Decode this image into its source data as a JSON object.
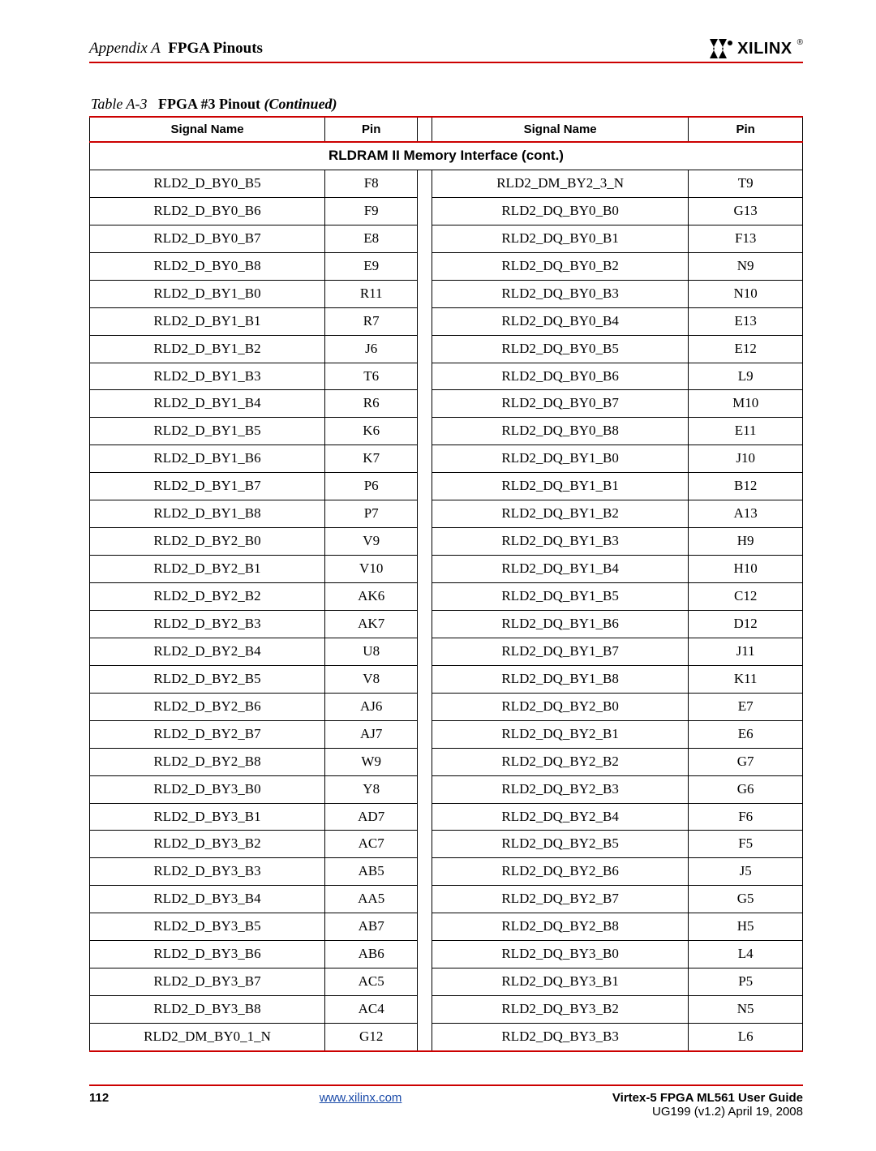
{
  "header": {
    "appendix_label": "Appendix A",
    "section_title": "FPGA Pinouts",
    "logo_text": "XILINX",
    "logo_reg": "®"
  },
  "caption": {
    "table_label": "Table  A-3",
    "title_bold": "FPGA #3 Pinout",
    "title_cont": "(Continued)"
  },
  "table": {
    "headers": {
      "signal_left": "Signal Name",
      "pin_left": "Pin",
      "signal_right": "Signal Name",
      "pin_right": "Pin"
    },
    "section_title": "RLDRAM II Memory Interface (cont.)",
    "rows": [
      {
        "l_sig": "RLD2_D_BY0_B5",
        "l_pin": "F8",
        "r_sig": "RLD2_DM_BY2_3_N",
        "r_pin": "T9"
      },
      {
        "l_sig": "RLD2_D_BY0_B6",
        "l_pin": "F9",
        "r_sig": "RLD2_DQ_BY0_B0",
        "r_pin": "G13"
      },
      {
        "l_sig": "RLD2_D_BY0_B7",
        "l_pin": "E8",
        "r_sig": "RLD2_DQ_BY0_B1",
        "r_pin": "F13"
      },
      {
        "l_sig": "RLD2_D_BY0_B8",
        "l_pin": "E9",
        "r_sig": "RLD2_DQ_BY0_B2",
        "r_pin": "N9"
      },
      {
        "l_sig": "RLD2_D_BY1_B0",
        "l_pin": "R11",
        "r_sig": "RLD2_DQ_BY0_B3",
        "r_pin": "N10"
      },
      {
        "l_sig": "RLD2_D_BY1_B1",
        "l_pin": "R7",
        "r_sig": "RLD2_DQ_BY0_B4",
        "r_pin": "E13"
      },
      {
        "l_sig": "RLD2_D_BY1_B2",
        "l_pin": "J6",
        "r_sig": "RLD2_DQ_BY0_B5",
        "r_pin": "E12"
      },
      {
        "l_sig": "RLD2_D_BY1_B3",
        "l_pin": "T6",
        "r_sig": "RLD2_DQ_BY0_B6",
        "r_pin": "L9"
      },
      {
        "l_sig": "RLD2_D_BY1_B4",
        "l_pin": "R6",
        "r_sig": "RLD2_DQ_BY0_B7",
        "r_pin": "M10"
      },
      {
        "l_sig": "RLD2_D_BY1_B5",
        "l_pin": "K6",
        "r_sig": "RLD2_DQ_BY0_B8",
        "r_pin": "E11"
      },
      {
        "l_sig": "RLD2_D_BY1_B6",
        "l_pin": "K7",
        "r_sig": "RLD2_DQ_BY1_B0",
        "r_pin": "J10"
      },
      {
        "l_sig": "RLD2_D_BY1_B7",
        "l_pin": "P6",
        "r_sig": "RLD2_DQ_BY1_B1",
        "r_pin": "B12"
      },
      {
        "l_sig": "RLD2_D_BY1_B8",
        "l_pin": "P7",
        "r_sig": "RLD2_DQ_BY1_B2",
        "r_pin": "A13"
      },
      {
        "l_sig": "RLD2_D_BY2_B0",
        "l_pin": "V9",
        "r_sig": "RLD2_DQ_BY1_B3",
        "r_pin": "H9"
      },
      {
        "l_sig": "RLD2_D_BY2_B1",
        "l_pin": "V10",
        "r_sig": "RLD2_DQ_BY1_B4",
        "r_pin": "H10"
      },
      {
        "l_sig": "RLD2_D_BY2_B2",
        "l_pin": "AK6",
        "r_sig": "RLD2_DQ_BY1_B5",
        "r_pin": "C12"
      },
      {
        "l_sig": "RLD2_D_BY2_B3",
        "l_pin": "AK7",
        "r_sig": "RLD2_DQ_BY1_B6",
        "r_pin": "D12"
      },
      {
        "l_sig": "RLD2_D_BY2_B4",
        "l_pin": "U8",
        "r_sig": "RLD2_DQ_BY1_B7",
        "r_pin": "J11"
      },
      {
        "l_sig": "RLD2_D_BY2_B5",
        "l_pin": "V8",
        "r_sig": "RLD2_DQ_BY1_B8",
        "r_pin": "K11"
      },
      {
        "l_sig": "RLD2_D_BY2_B6",
        "l_pin": "AJ6",
        "r_sig": "RLD2_DQ_BY2_B0",
        "r_pin": "E7"
      },
      {
        "l_sig": "RLD2_D_BY2_B7",
        "l_pin": "AJ7",
        "r_sig": "RLD2_DQ_BY2_B1",
        "r_pin": "E6"
      },
      {
        "l_sig": "RLD2_D_BY2_B8",
        "l_pin": "W9",
        "r_sig": "RLD2_DQ_BY2_B2",
        "r_pin": "G7"
      },
      {
        "l_sig": "RLD2_D_BY3_B0",
        "l_pin": "Y8",
        "r_sig": "RLD2_DQ_BY2_B3",
        "r_pin": "G6"
      },
      {
        "l_sig": "RLD2_D_BY3_B1",
        "l_pin": "AD7",
        "r_sig": "RLD2_DQ_BY2_B4",
        "r_pin": "F6"
      },
      {
        "l_sig": "RLD2_D_BY3_B2",
        "l_pin": "AC7",
        "r_sig": "RLD2_DQ_BY2_B5",
        "r_pin": "F5"
      },
      {
        "l_sig": "RLD2_D_BY3_B3",
        "l_pin": "AB5",
        "r_sig": "RLD2_DQ_BY2_B6",
        "r_pin": "J5"
      },
      {
        "l_sig": "RLD2_D_BY3_B4",
        "l_pin": "AA5",
        "r_sig": "RLD2_DQ_BY2_B7",
        "r_pin": "G5"
      },
      {
        "l_sig": "RLD2_D_BY3_B5",
        "l_pin": "AB7",
        "r_sig": "RLD2_DQ_BY2_B8",
        "r_pin": "H5"
      },
      {
        "l_sig": "RLD2_D_BY3_B6",
        "l_pin": "AB6",
        "r_sig": "RLD2_DQ_BY3_B0",
        "r_pin": "L4"
      },
      {
        "l_sig": "RLD2_D_BY3_B7",
        "l_pin": "AC5",
        "r_sig": "RLD2_DQ_BY3_B1",
        "r_pin": "P5"
      },
      {
        "l_sig": "RLD2_D_BY3_B8",
        "l_pin": "AC4",
        "r_sig": "RLD2_DQ_BY3_B2",
        "r_pin": "N5"
      },
      {
        "l_sig": "RLD2_DM_BY0_1_N",
        "l_pin": "G12",
        "r_sig": "RLD2_DQ_BY3_B3",
        "r_pin": "L6"
      }
    ]
  },
  "footer": {
    "page_number": "112",
    "url_text": "www.xilinx.com",
    "guide_title": "Virtex-5 FPGA ML561 User Guide",
    "guide_version": "UG199 (v1.2) April 19, 2008"
  },
  "colors": {
    "rule_red": "#cc0000",
    "link_blue": "#1a4aa8"
  }
}
